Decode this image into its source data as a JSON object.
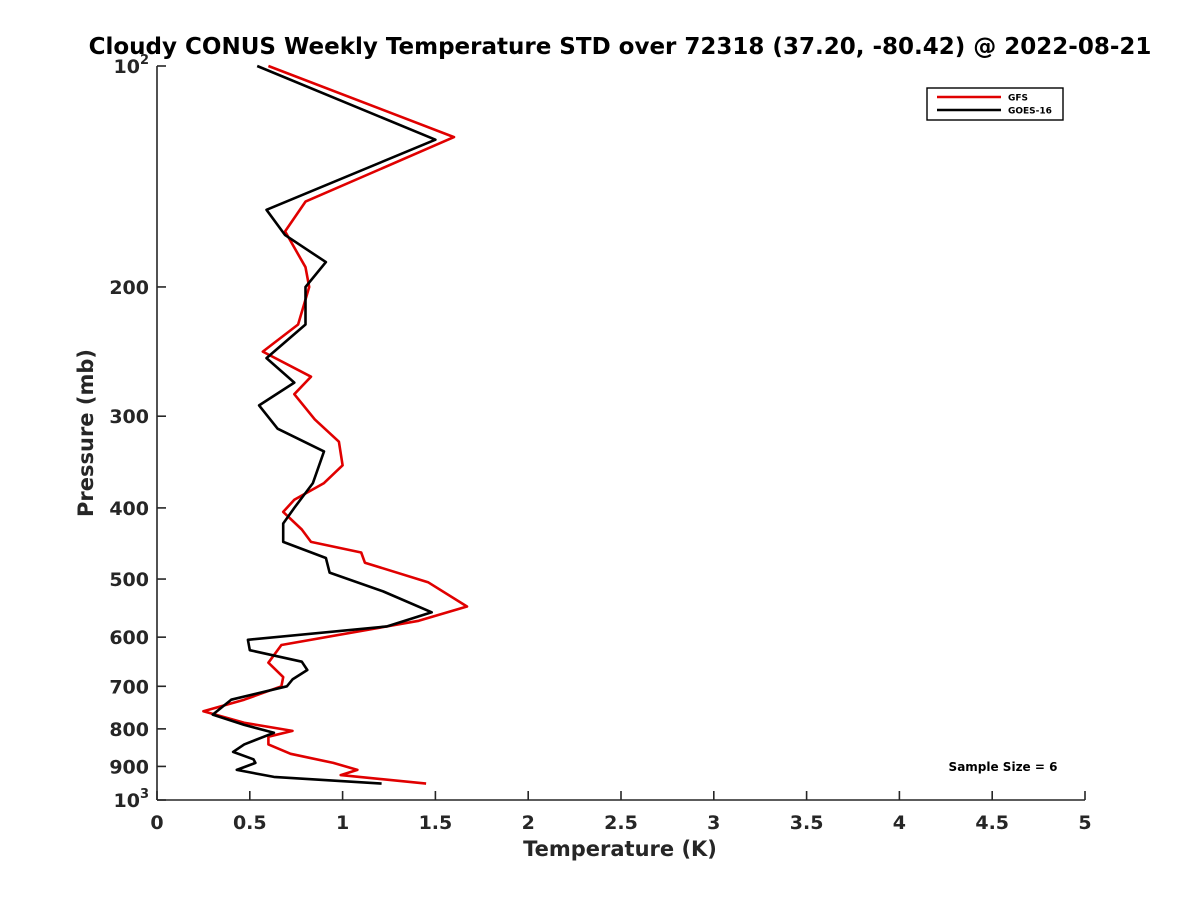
{
  "chart_data": {
    "type": "line",
    "title": "Cloudy CONUS Weekly Temperature STD over 72318 (37.20, -80.42) @ 2022-08-21",
    "xlabel": "Temperature (K)",
    "ylabel": "Pressure (mb)",
    "xlim": [
      0,
      5
    ],
    "ylim": [
      100,
      1000
    ],
    "yscale": "log",
    "yreversed": true,
    "x_ticks": [
      0,
      0.5,
      1,
      1.5,
      2,
      2.5,
      3,
      3.5,
      4,
      4.5,
      5
    ],
    "x_tick_labels": [
      "0",
      "0.5",
      "1",
      "1.5",
      "2",
      "2.5",
      "3",
      "3.5",
      "4",
      "4.5",
      "5"
    ],
    "y_ticks": [
      100,
      200,
      300,
      400,
      500,
      600,
      700,
      800,
      900,
      1000
    ],
    "y_tick_labels": [
      {
        "base": "10",
        "exp": "2"
      },
      {
        "base": "200"
      },
      {
        "base": "300"
      },
      {
        "base": "400"
      },
      {
        "base": "500"
      },
      {
        "base": "600"
      },
      {
        "base": "700"
      },
      {
        "base": "800"
      },
      {
        "base": "900"
      },
      {
        "base": "10",
        "exp": "3"
      }
    ],
    "legend": {
      "position": "top-right",
      "entries": [
        "GFS",
        "GOES-16"
      ]
    },
    "annotation": "Sample Size = 6",
    "series": [
      {
        "name": "GFS",
        "color": "#e00000",
        "points": [
          [
            0.6,
            100
          ],
          [
            1.6,
            125
          ],
          [
            0.8,
            153
          ],
          [
            0.69,
            168
          ],
          [
            0.8,
            188
          ],
          [
            0.82,
            200
          ],
          [
            0.76,
            225
          ],
          [
            0.57,
            245
          ],
          [
            0.83,
            265
          ],
          [
            0.74,
            280
          ],
          [
            0.85,
            303
          ],
          [
            0.98,
            325
          ],
          [
            1.0,
            350
          ],
          [
            0.9,
            370
          ],
          [
            0.74,
            390
          ],
          [
            0.68,
            405
          ],
          [
            0.78,
            428
          ],
          [
            0.83,
            445
          ],
          [
            1.1,
            460
          ],
          [
            1.12,
            475
          ],
          [
            1.46,
            505
          ],
          [
            1.67,
            545
          ],
          [
            1.41,
            570
          ],
          [
            0.67,
            615
          ],
          [
            0.6,
            650
          ],
          [
            0.68,
            680
          ],
          [
            0.67,
            700
          ],
          [
            0.47,
            730
          ],
          [
            0.25,
            757
          ],
          [
            0.47,
            785
          ],
          [
            0.73,
            805
          ],
          [
            0.6,
            820
          ],
          [
            0.6,
            840
          ],
          [
            0.72,
            865
          ],
          [
            0.95,
            890
          ],
          [
            1.08,
            910
          ],
          [
            0.99,
            925
          ],
          [
            1.45,
            950
          ]
        ]
      },
      {
        "name": "GOES-16",
        "color": "#000000",
        "points": [
          [
            0.54,
            100
          ],
          [
            1.5,
            126
          ],
          [
            0.59,
            157
          ],
          [
            0.69,
            170
          ],
          [
            0.91,
            185
          ],
          [
            0.8,
            200
          ],
          [
            0.8,
            225
          ],
          [
            0.59,
            250
          ],
          [
            0.74,
            270
          ],
          [
            0.55,
            290
          ],
          [
            0.65,
            312
          ],
          [
            0.9,
            335
          ],
          [
            0.84,
            370
          ],
          [
            0.74,
            400
          ],
          [
            0.68,
            420
          ],
          [
            0.68,
            445
          ],
          [
            0.91,
            468
          ],
          [
            0.93,
            490
          ],
          [
            1.22,
            520
          ],
          [
            1.48,
            555
          ],
          [
            1.24,
            580
          ],
          [
            0.49,
            605
          ],
          [
            0.5,
            625
          ],
          [
            0.78,
            648
          ],
          [
            0.81,
            665
          ],
          [
            0.73,
            685
          ],
          [
            0.7,
            700
          ],
          [
            0.4,
            730
          ],
          [
            0.3,
            765
          ],
          [
            0.47,
            790
          ],
          [
            0.63,
            810
          ],
          [
            0.47,
            840
          ],
          [
            0.41,
            860
          ],
          [
            0.52,
            880
          ],
          [
            0.53,
            890
          ],
          [
            0.43,
            910
          ],
          [
            0.63,
            930
          ],
          [
            1.21,
            950
          ]
        ]
      }
    ]
  }
}
